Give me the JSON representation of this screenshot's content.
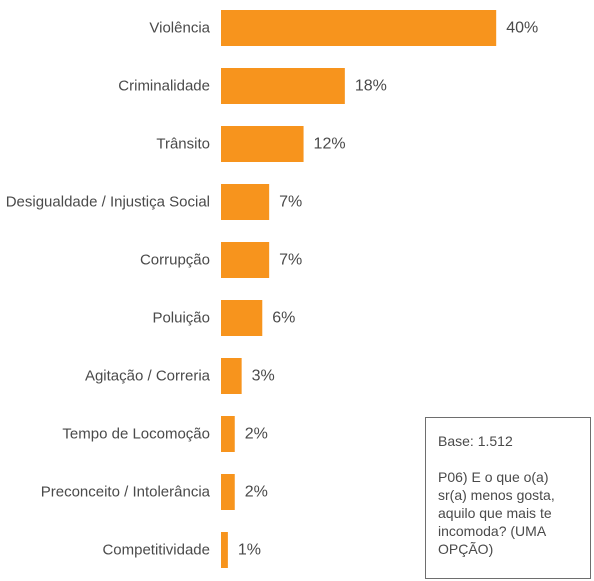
{
  "chart_data": {
    "type": "bar",
    "orientation": "horizontal",
    "categories": [
      "Violência",
      "Criminalidade",
      "Trânsito",
      "Desigualdade /  Injustiça Social",
      "Corrupção",
      "Poluição",
      "Agitação / Correria",
      "Tempo de Locomoção",
      "Preconceito / Intolerância",
      "Competitividade"
    ],
    "values": [
      40,
      18,
      12,
      7,
      7,
      6,
      3,
      2,
      2,
      1
    ],
    "value_labels": [
      "40%",
      "18%",
      "12%",
      "7%",
      "7%",
      "6%",
      "3%",
      "2%",
      "2%",
      "1%"
    ],
    "bar_color": "#f7941d",
    "label_color": "#4a4a4a",
    "grid": false,
    "legend": "none"
  },
  "note": {
    "base": "Base: 1.512",
    "question": "P06) E o que o(a) sr(a) menos gosta, aquilo que mais te incomoda? (UMA OPÇÃO)"
  }
}
